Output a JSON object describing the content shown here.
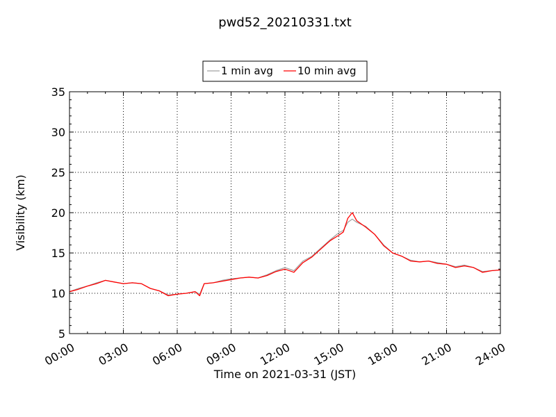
{
  "chart_data": {
    "type": "line",
    "title": "pwd52_20210331.txt",
    "xlabel": "Time on 2021-03-31 (JST)",
    "ylabel": "Visibility (km)",
    "x_ticks": [
      "00:00",
      "03:00",
      "06:00",
      "09:00",
      "12:00",
      "15:00",
      "18:00",
      "21:00",
      "24:00"
    ],
    "y_ticks": [
      5,
      10,
      15,
      20,
      25,
      30,
      35
    ],
    "xlim_hours": [
      0,
      24
    ],
    "ylim": [
      5,
      35
    ],
    "grid": true,
    "legend_position": "top-center",
    "series": [
      {
        "name": "1 min avg",
        "color": "#a0a0a0",
        "hours": [
          0,
          0.5,
          1,
          1.5,
          2,
          2.5,
          3,
          3.5,
          4,
          4.5,
          5,
          5.5,
          6,
          6.5,
          7,
          7.25,
          7.5,
          8,
          8.5,
          9,
          9.5,
          10,
          10.5,
          11,
          11.5,
          12,
          12.5,
          13,
          13.5,
          14,
          14.5,
          15,
          15.25,
          15.5,
          15.75,
          16,
          16.5,
          17,
          17.5,
          18,
          18.5,
          19,
          19.5,
          20,
          20.5,
          21,
          21.5,
          22,
          22.5,
          23,
          23.5,
          24
        ],
        "values": [
          10.2,
          10.6,
          10.9,
          11.3,
          11.6,
          11.4,
          11.2,
          11.3,
          11.2,
          10.6,
          10.3,
          9.8,
          9.9,
          10.0,
          10.2,
          9.9,
          11.2,
          11.3,
          11.6,
          11.8,
          11.9,
          12.0,
          11.9,
          12.3,
          12.8,
          13.2,
          12.8,
          14.0,
          14.6,
          15.6,
          16.6,
          17.5,
          17.8,
          18.8,
          19.2,
          18.8,
          18.3,
          17.3,
          16.0,
          15.0,
          14.6,
          14.1,
          13.9,
          14.0,
          13.8,
          13.6,
          13.3,
          13.5,
          13.2,
          12.7,
          12.8,
          12.9
        ]
      },
      {
        "name": "10 min avg",
        "color": "#ff0000",
        "hours": [
          0,
          0.5,
          1,
          1.5,
          2,
          2.5,
          3,
          3.5,
          4,
          4.5,
          5,
          5.5,
          6,
          6.5,
          7,
          7.25,
          7.5,
          8,
          8.5,
          9,
          9.5,
          10,
          10.5,
          11,
          11.5,
          12,
          12.5,
          13,
          13.5,
          14,
          14.5,
          15,
          15.25,
          15.5,
          15.75,
          16,
          16.5,
          17,
          17.5,
          18,
          18.5,
          19,
          19.5,
          20,
          20.5,
          21,
          21.5,
          22,
          22.5,
          23,
          23.5,
          24
        ],
        "values": [
          10.2,
          10.5,
          10.9,
          11.2,
          11.6,
          11.4,
          11.2,
          11.3,
          11.2,
          10.6,
          10.3,
          9.7,
          9.9,
          10.0,
          10.2,
          9.7,
          11.2,
          11.3,
          11.5,
          11.7,
          11.9,
          12.0,
          11.9,
          12.2,
          12.7,
          13.0,
          12.6,
          13.8,
          14.5,
          15.5,
          16.5,
          17.2,
          17.6,
          19.3,
          20.0,
          19.0,
          18.2,
          17.3,
          15.9,
          15.0,
          14.6,
          14.0,
          13.9,
          14.0,
          13.7,
          13.6,
          13.2,
          13.4,
          13.2,
          12.6,
          12.8,
          12.9
        ]
      }
    ]
  }
}
